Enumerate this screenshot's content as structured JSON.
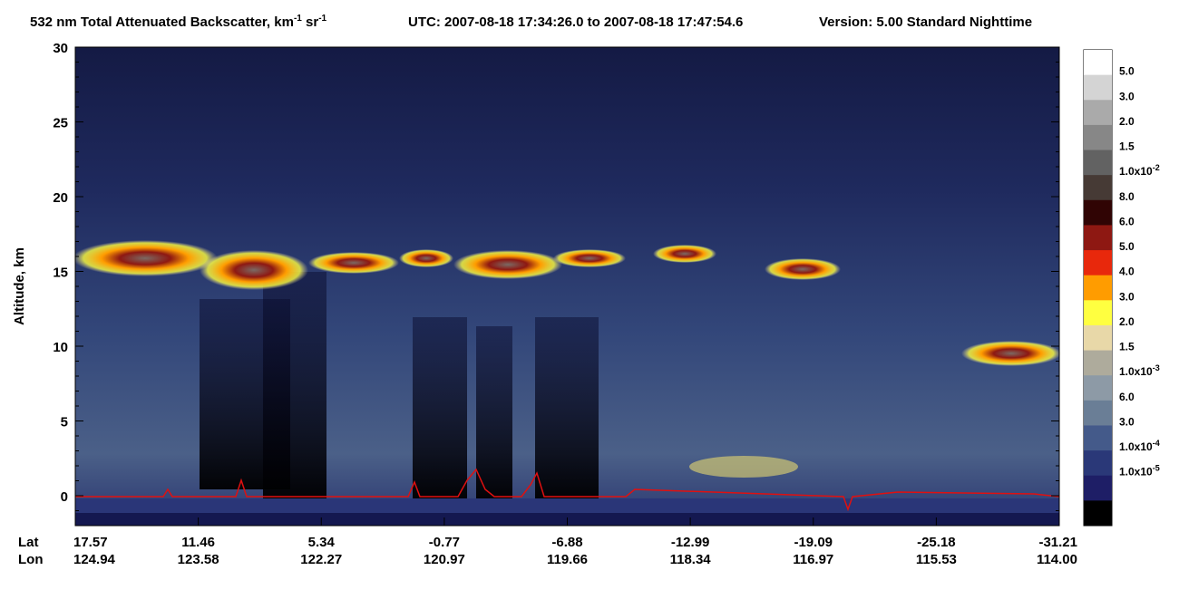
{
  "chart_data": {
    "type": "heatmap",
    "title": "532 nm Total Attenuated Backscatter, km",
    "title_sup1": "-1",
    "title_mid": " sr",
    "title_sup2": "-1",
    "utc": "UTC:  2007-08-18 17:34:26.0  to  2007-08-18 17:47:54.6",
    "version": "Version: 5.00  Standard  Nighttime",
    "y_label": "Altitude, km",
    "ylim": [
      -2,
      30
    ],
    "yticks": [
      0,
      5,
      10,
      15,
      20,
      25,
      30
    ],
    "lat_label": "Lat",
    "lon_label": "Lon",
    "lat_ticks": [
      17.57,
      11.46,
      5.34,
      -0.77,
      -6.88,
      -12.99,
      -19.09,
      -25.18,
      -31.21
    ],
    "lon_ticks": [
      124.94,
      123.58,
      122.27,
      120.97,
      119.66,
      118.34,
      116.97,
      115.53,
      {
        "value": 114,
        "label": "114.00"
      }
    ],
    "colorbar_colors": [
      "#ffffff",
      "#d4d4d4",
      "#aaaaaa",
      "#878787",
      "#626262",
      "#463a35",
      "#300404",
      "#8e1812",
      "#e8280c",
      "#ff9c00",
      "#ffff40",
      "#e8d8a8",
      "#aeab9c",
      "#8d9aa6",
      "#6a7e96",
      "#445a8a",
      "#2a3878",
      "#1e1e66",
      "#000000"
    ],
    "colorbar_labels": [
      {
        "value": 0.05,
        "label": "5.0"
      },
      {
        "value": 0.03,
        "label": "3.0"
      },
      {
        "value": 0.02,
        "label": "2.0"
      },
      {
        "value": 0.015,
        "label": "1.5"
      },
      {
        "value": 0.01,
        "label": "1.0x10",
        "exp": "-2"
      },
      {
        "value": 0.008,
        "label": "8.0"
      },
      {
        "value": 0.006,
        "label": "6.0"
      },
      {
        "value": 0.005,
        "label": "5.0"
      },
      {
        "value": 0.004,
        "label": "4.0"
      },
      {
        "value": 0.003,
        "label": "3.0"
      },
      {
        "value": 0.002,
        "label": "2.0"
      },
      {
        "value": 0.0015,
        "label": "1.5"
      },
      {
        "value": 0.001,
        "label": "1.0x10",
        "exp": "-3"
      },
      {
        "value": 0.0006,
        "label": "6.0"
      },
      {
        "value": 0.0003,
        "label": "3.0"
      },
      {
        "value": 0.0001,
        "label": "1.0x10",
        "exp": "-4"
      },
      {
        "value": 1e-05,
        "label": "1.0x10",
        "exp": "-5"
      }
    ]
  }
}
